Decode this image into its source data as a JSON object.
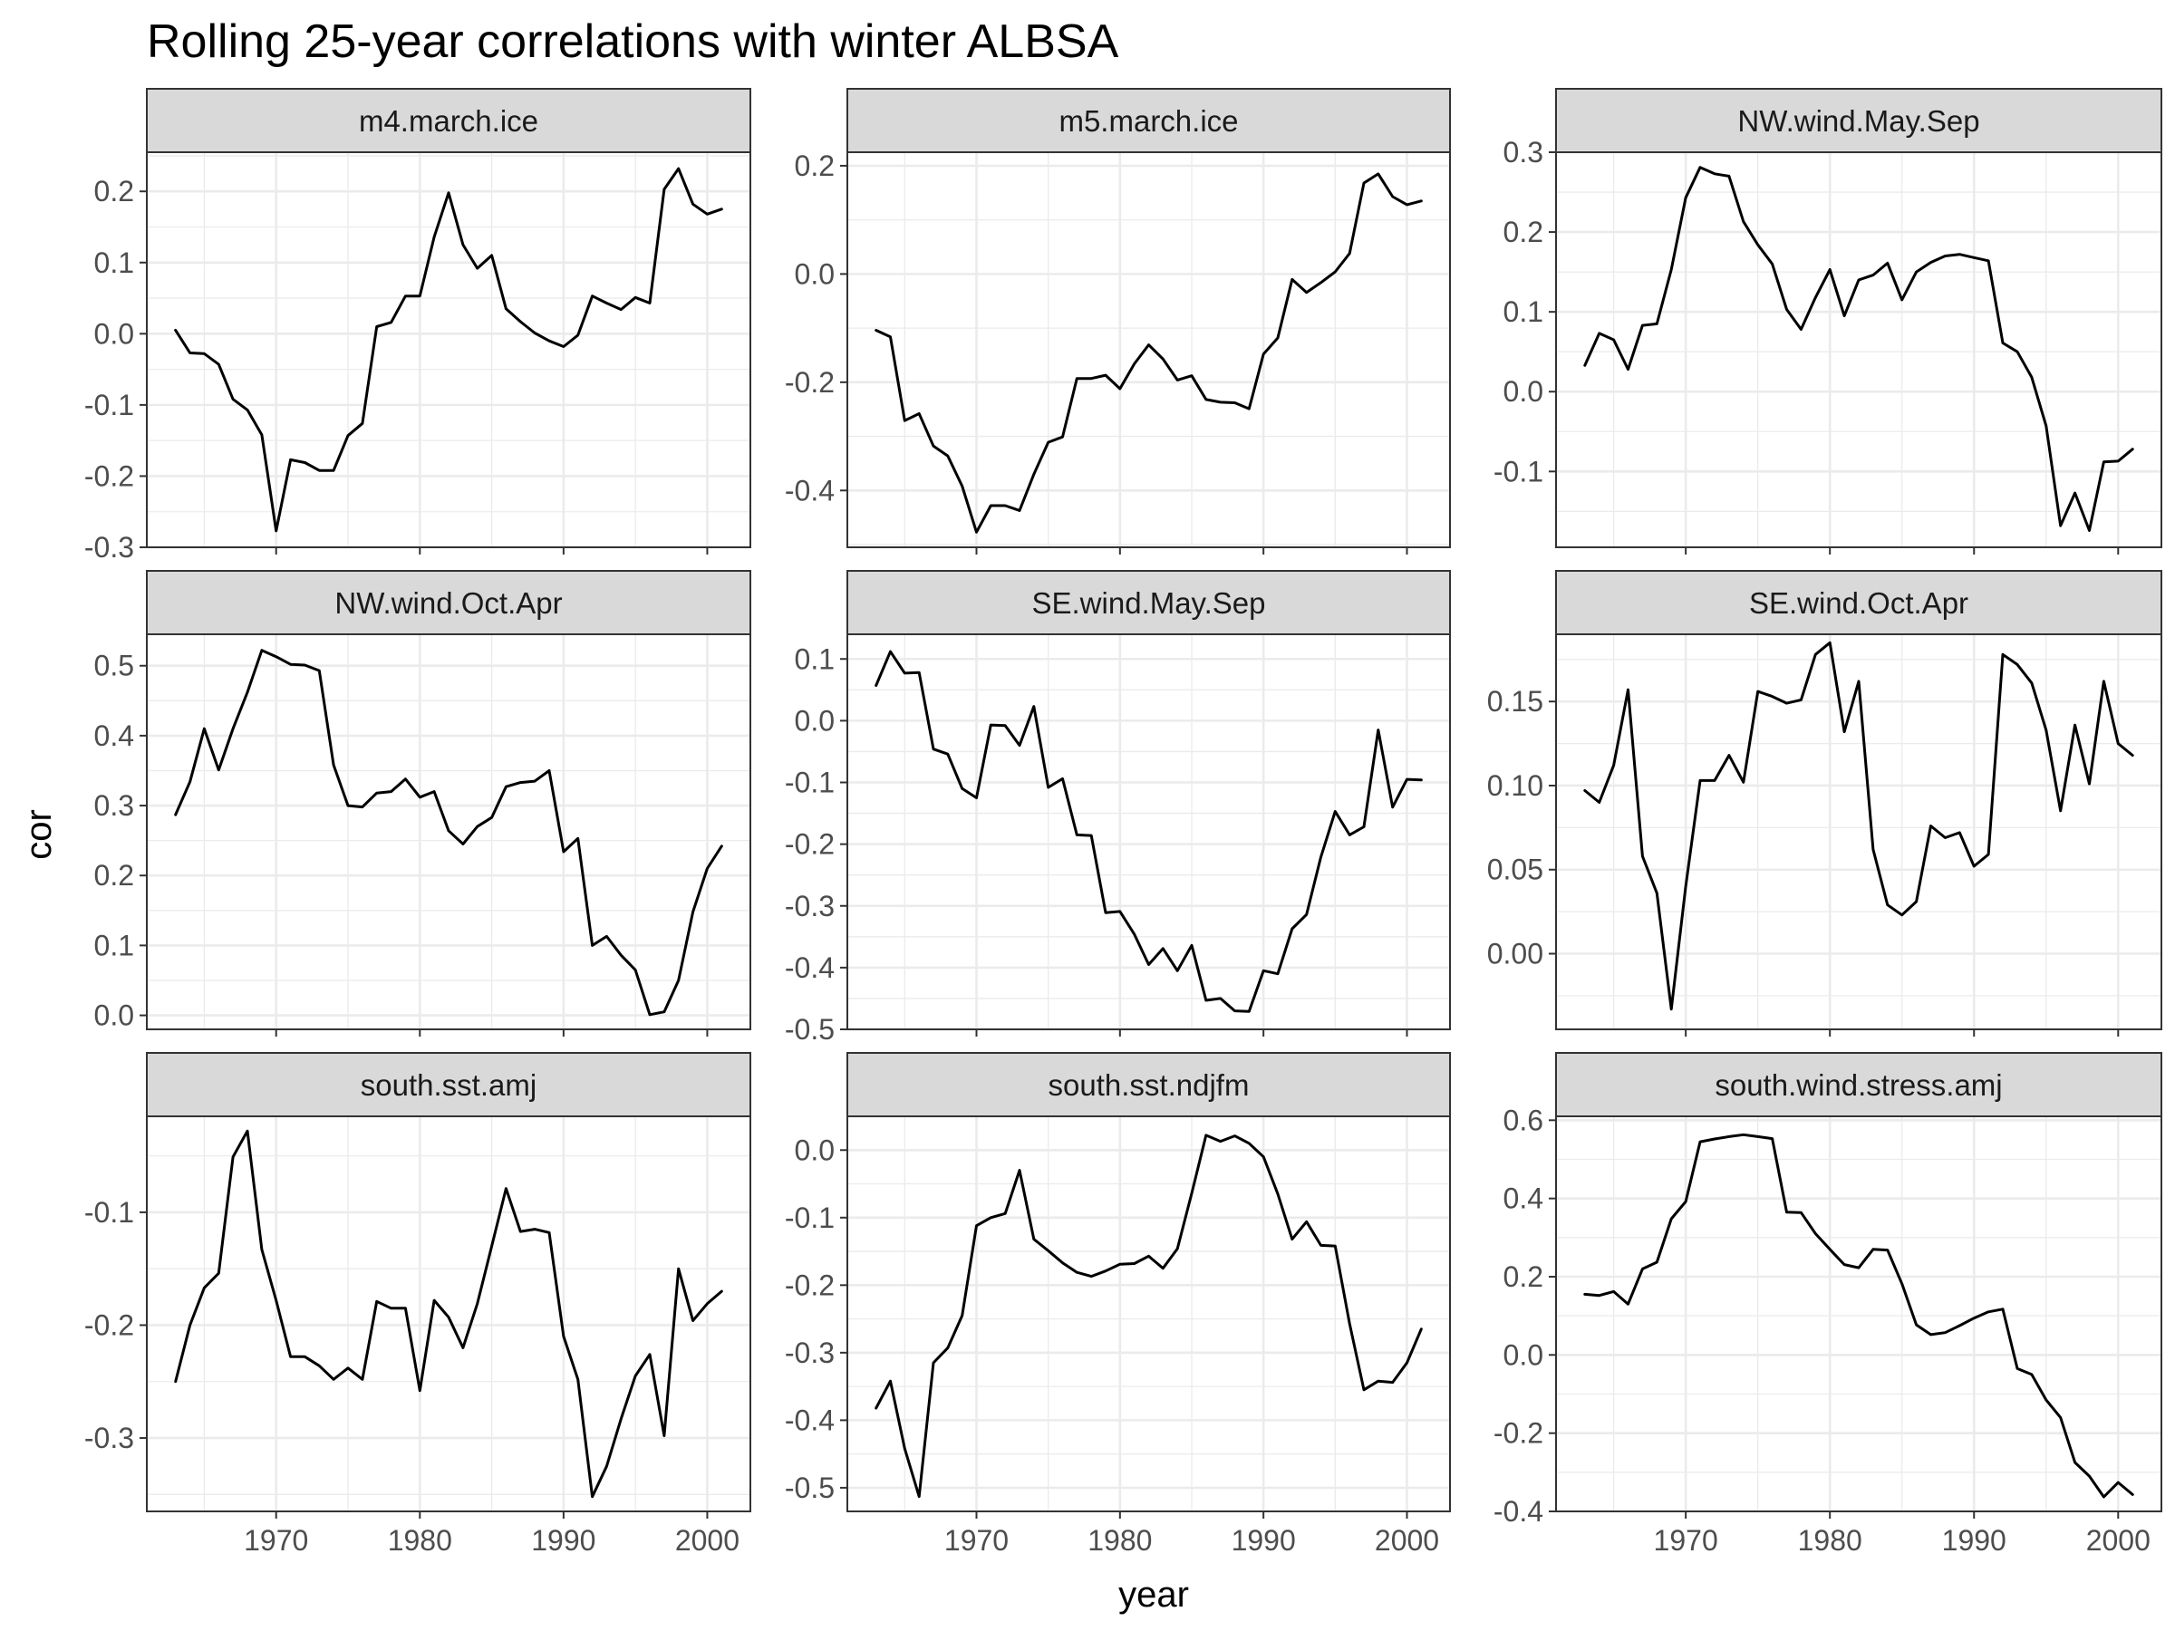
{
  "chart_data": {
    "type": "line",
    "title": "Rolling 25-year correlations with winter ALBSA",
    "xlabel": "year",
    "ylabel": "cor",
    "layout": "facet grid 3x3, free y scales, shared x scale",
    "grid": true,
    "xlim": [
      1961,
      2003
    ],
    "x_ticks": [
      1970,
      1980,
      1990,
      2000
    ],
    "x": [
      1963,
      1964,
      1965,
      1966,
      1967,
      1968,
      1969,
      1970,
      1971,
      1972,
      1973,
      1974,
      1975,
      1976,
      1977,
      1978,
      1979,
      1980,
      1981,
      1982,
      1983,
      1984,
      1985,
      1986,
      1987,
      1988,
      1989,
      1990,
      1991,
      1992,
      1993,
      1994,
      1995,
      1996,
      1997,
      1998,
      1999,
      2000,
      2001
    ],
    "panels": [
      {
        "name": "m4.march.ice",
        "ylim": [
          -0.3,
          0.255
        ],
        "y_ticks": [
          -0.3,
          -0.2,
          -0.1,
          0.0,
          0.1,
          0.2
        ],
        "y_tick_labels": [
          "-0.3",
          "-0.2",
          "-0.1",
          "0.0",
          "0.1",
          "0.2"
        ],
        "values": [
          0.005,
          -0.027,
          -0.028,
          -0.043,
          -0.092,
          -0.107,
          -0.142,
          -0.277,
          -0.177,
          -0.181,
          -0.192,
          -0.192,
          -0.143,
          -0.126,
          0.01,
          0.016,
          0.053,
          0.053,
          0.136,
          0.198,
          0.125,
          0.092,
          0.11,
          0.035,
          0.017,
          0.001,
          -0.01,
          -0.018,
          -0.002,
          0.053,
          0.043,
          0.034,
          0.051,
          0.043,
          0.203,
          0.232,
          0.182,
          0.168,
          0.175
        ]
      },
      {
        "name": "m5.march.ice",
        "ylim": [
          -0.505,
          0.225
        ],
        "y_ticks": [
          -0.4,
          -0.2,
          0.0,
          0.2
        ],
        "y_tick_labels": [
          "-0.4",
          "-0.2",
          "0.0",
          "0.2"
        ],
        "values": [
          -0.104,
          -0.116,
          -0.271,
          -0.258,
          -0.318,
          -0.336,
          -0.392,
          -0.477,
          -0.428,
          -0.428,
          -0.437,
          -0.37,
          -0.311,
          -0.301,
          -0.193,
          -0.193,
          -0.187,
          -0.212,
          -0.166,
          -0.131,
          -0.157,
          -0.196,
          -0.188,
          -0.232,
          -0.237,
          -0.238,
          -0.249,
          -0.148,
          -0.118,
          -0.01,
          -0.034,
          -0.016,
          0.004,
          0.038,
          0.168,
          0.185,
          0.143,
          0.128,
          0.135
        ]
      },
      {
        "name": "NW.wind.May.Sep",
        "ylim": [
          -0.195,
          0.3
        ],
        "y_ticks": [
          -0.1,
          0.0,
          0.1,
          0.2,
          0.3
        ],
        "y_tick_labels": [
          "-0.1",
          "0.0",
          "0.1",
          "0.2",
          "0.3"
        ],
        "values": [
          0.033,
          0.073,
          0.065,
          0.028,
          0.083,
          0.085,
          0.153,
          0.243,
          0.281,
          0.273,
          0.27,
          0.213,
          0.184,
          0.16,
          0.103,
          0.078,
          0.118,
          0.153,
          0.095,
          0.14,
          0.146,
          0.161,
          0.115,
          0.15,
          0.162,
          0.17,
          0.172,
          0.168,
          0.164,
          0.061,
          0.05,
          0.018,
          -0.043,
          -0.168,
          -0.127,
          -0.174,
          -0.088,
          -0.087,
          -0.072
        ]
      },
      {
        "name": "NW.wind.Oct.Apr",
        "ylim": [
          -0.02,
          0.545
        ],
        "y_ticks": [
          0.0,
          0.1,
          0.2,
          0.3,
          0.4,
          0.5
        ],
        "y_tick_labels": [
          "0.0",
          "0.1",
          "0.2",
          "0.3",
          "0.4",
          "0.5"
        ],
        "values": [
          0.287,
          0.334,
          0.41,
          0.351,
          0.41,
          0.462,
          0.522,
          0.513,
          0.502,
          0.501,
          0.493,
          0.358,
          0.3,
          0.298,
          0.318,
          0.32,
          0.338,
          0.312,
          0.32,
          0.264,
          0.245,
          0.27,
          0.283,
          0.327,
          0.333,
          0.335,
          0.35,
          0.234,
          0.253,
          0.1,
          0.113,
          0.086,
          0.065,
          0.001,
          0.005,
          0.05,
          0.148,
          0.21,
          0.242
        ]
      },
      {
        "name": "SE.wind.May.Sep",
        "ylim": [
          -0.5,
          0.14
        ],
        "y_ticks": [
          -0.5,
          -0.4,
          -0.3,
          -0.2,
          -0.1,
          0.0,
          0.1
        ],
        "y_tick_labels": [
          "-0.5",
          "-0.4",
          "-0.3",
          "-0.2",
          "-0.1",
          "0.0",
          "0.1"
        ],
        "values": [
          0.057,
          0.112,
          0.077,
          0.078,
          -0.046,
          -0.054,
          -0.11,
          -0.125,
          -0.007,
          -0.008,
          -0.04,
          0.023,
          -0.108,
          -0.094,
          -0.185,
          -0.186,
          -0.311,
          -0.309,
          -0.346,
          -0.395,
          -0.369,
          -0.405,
          -0.364,
          -0.453,
          -0.45,
          -0.47,
          -0.471,
          -0.405,
          -0.41,
          -0.337,
          -0.314,
          -0.221,
          -0.147,
          -0.185,
          -0.172,
          -0.015,
          -0.14,
          -0.095,
          -0.096
        ]
      },
      {
        "name": "SE.wind.Oct.Apr",
        "ylim": [
          -0.045,
          0.19
        ],
        "y_ticks": [
          0.0,
          0.05,
          0.1,
          0.15
        ],
        "y_tick_labels": [
          "0.00",
          "0.05",
          "0.10",
          "0.15"
        ],
        "values": [
          0.097,
          0.09,
          0.112,
          0.157,
          0.058,
          0.036,
          -0.033,
          0.04,
          0.103,
          0.103,
          0.118,
          0.102,
          0.156,
          0.153,
          0.149,
          0.151,
          0.178,
          0.185,
          0.132,
          0.162,
          0.062,
          0.029,
          0.023,
          0.031,
          0.076,
          0.069,
          0.072,
          0.052,
          0.059,
          0.178,
          0.172,
          0.161,
          0.133,
          0.085,
          0.136,
          0.101,
          0.162,
          0.125,
          0.118
        ]
      },
      {
        "name": "south.sst.amj",
        "ylim": [
          -0.365,
          -0.015
        ],
        "y_ticks": [
          -0.3,
          -0.2,
          -0.1
        ],
        "y_tick_labels": [
          "-0.3",
          "-0.2",
          "-0.1"
        ],
        "values": [
          -0.25,
          -0.2,
          -0.167,
          -0.154,
          -0.051,
          -0.028,
          -0.133,
          -0.178,
          -0.228,
          -0.228,
          -0.236,
          -0.248,
          -0.238,
          -0.248,
          -0.179,
          -0.185,
          -0.185,
          -0.258,
          -0.178,
          -0.193,
          -0.22,
          -0.181,
          -0.13,
          -0.079,
          -0.117,
          -0.115,
          -0.118,
          -0.21,
          -0.248,
          -0.352,
          -0.325,
          -0.283,
          -0.245,
          -0.226,
          -0.298,
          -0.15,
          -0.196,
          -0.181,
          -0.17
        ]
      },
      {
        "name": "south.sst.ndjfm",
        "ylim": [
          -0.535,
          0.05
        ],
        "y_ticks": [
          -0.5,
          -0.4,
          -0.3,
          -0.2,
          -0.1,
          0.0
        ],
        "y_tick_labels": [
          "-0.5",
          "-0.4",
          "-0.3",
          "-0.2",
          "-0.1",
          "0.0"
        ],
        "values": [
          -0.382,
          -0.342,
          -0.442,
          -0.513,
          -0.315,
          -0.293,
          -0.245,
          -0.112,
          -0.1,
          -0.094,
          -0.03,
          -0.132,
          -0.149,
          -0.167,
          -0.181,
          -0.187,
          -0.179,
          -0.169,
          -0.168,
          -0.157,
          -0.175,
          -0.146,
          -0.064,
          0.022,
          0.013,
          0.021,
          0.01,
          -0.01,
          -0.065,
          -0.132,
          -0.106,
          -0.141,
          -0.142,
          -0.257,
          -0.355,
          -0.342,
          -0.344,
          -0.315,
          -0.265
        ]
      },
      {
        "name": "south.wind.stress.amj",
        "ylim": [
          -0.4,
          0.61
        ],
        "y_ticks": [
          -0.4,
          -0.2,
          0.0,
          0.2,
          0.4,
          0.6
        ],
        "y_tick_labels": [
          "-0.4",
          "-0.2",
          "0.0",
          "0.2",
          "0.4",
          "0.6"
        ],
        "values": [
          0.155,
          0.152,
          0.162,
          0.13,
          0.22,
          0.237,
          0.348,
          0.392,
          0.545,
          0.552,
          0.558,
          0.563,
          0.558,
          0.553,
          0.365,
          0.364,
          0.31,
          0.27,
          0.231,
          0.223,
          0.27,
          0.268,
          0.182,
          0.077,
          0.052,
          0.057,
          0.075,
          0.094,
          0.11,
          0.117,
          -0.035,
          -0.05,
          -0.115,
          -0.16,
          -0.275,
          -0.31,
          -0.363,
          -0.326,
          -0.357
        ]
      }
    ]
  }
}
